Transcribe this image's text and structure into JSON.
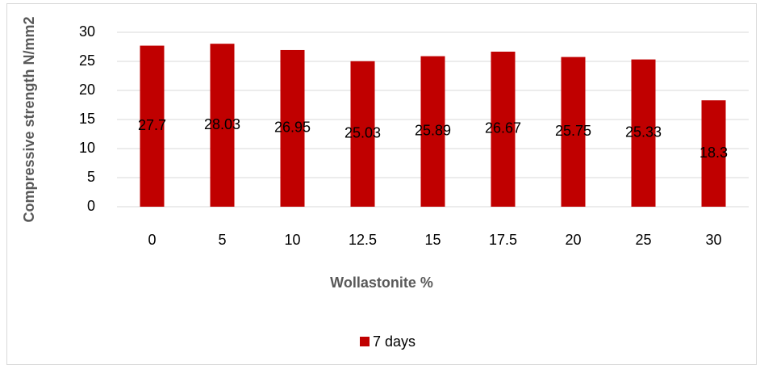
{
  "chart_data": {
    "type": "bar",
    "categories": [
      "0",
      "5",
      "10",
      "12.5",
      "15",
      "17.5",
      "20",
      "25",
      "30"
    ],
    "series": [
      {
        "name": "7 days",
        "color": "#c00000",
        "values": [
          27.7,
          28.03,
          26.95,
          25.03,
          25.89,
          26.67,
          25.75,
          25.33,
          18.3
        ]
      }
    ],
    "ylim": [
      0,
      30
    ],
    "yticks": [
      0,
      5,
      10,
      15,
      20,
      25,
      30
    ],
    "grid": true,
    "x_label": "Wollastonite %",
    "y_label": "Compressive strength N/mm2",
    "legend": "bottom"
  }
}
